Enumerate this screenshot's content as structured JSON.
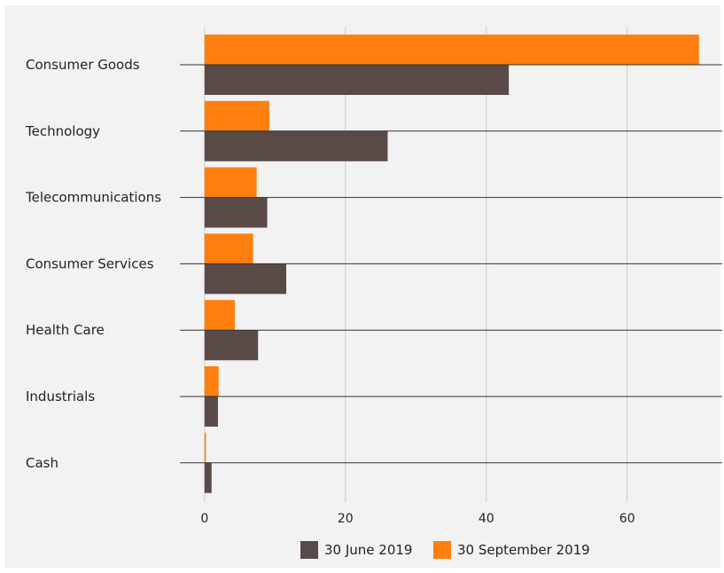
{
  "chart_data": {
    "type": "bar",
    "orientation": "horizontal",
    "categories": [
      "Consumer Goods",
      "Technology",
      "Telecommunications",
      "Consumer Services",
      "Health Care",
      "Industrials",
      "Cash"
    ],
    "series": [
      {
        "name": "30 June 2019",
        "color": "#5a4a47",
        "values": [
          43.2,
          26.0,
          8.9,
          11.6,
          7.6,
          1.9,
          1.0
        ]
      },
      {
        "name": "30 September 2019",
        "color": "#ff7f0e",
        "values": [
          70.2,
          9.2,
          7.4,
          6.9,
          4.3,
          2.0,
          0.2
        ]
      }
    ],
    "x_ticks": [
      0,
      20,
      40,
      60
    ],
    "xlim": [
      -3.5,
      73.5
    ],
    "grid": "vertical",
    "legend_position": "bottom-center",
    "colors": {
      "background": "#f2f2f2",
      "grid": "#cccccc",
      "separator": "#333333"
    }
  }
}
